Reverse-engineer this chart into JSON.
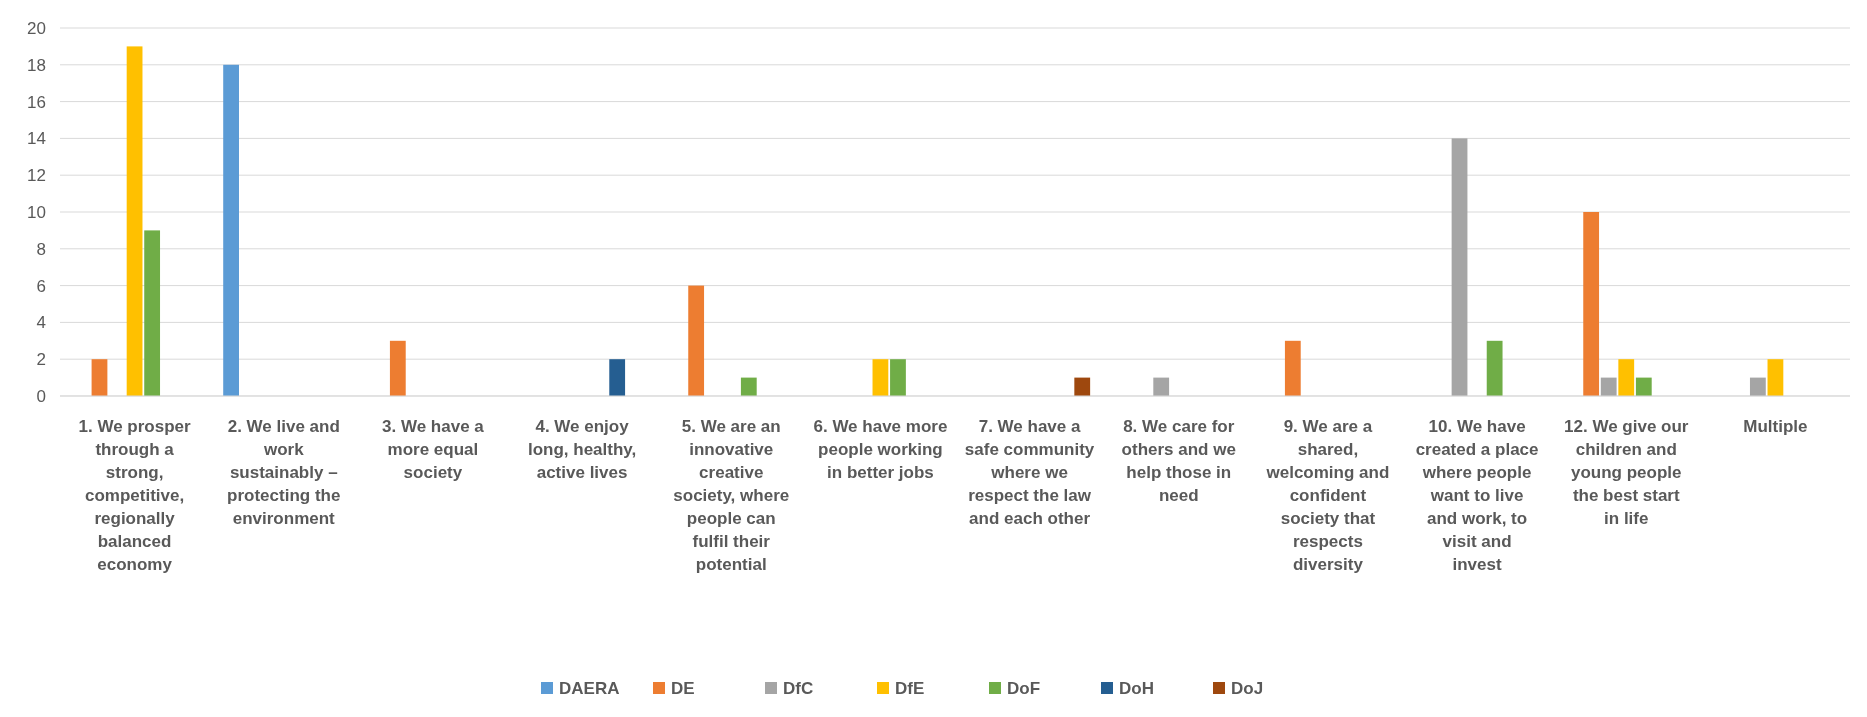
{
  "chart_data": {
    "type": "bar",
    "categories": [
      "1. We prosper through a strong, competitive, regionally balanced economy",
      "2. We live and work sustainably – protecting the environment",
      "3. We have a more equal society",
      "4. We enjoy long, healthy, active lives",
      "5. We are an innovative creative society, where people can fulfil their potential",
      "6. We have more people working in better jobs",
      "7. We have a safe community where we respect the law and each other",
      "8. We care for others and we help those in need",
      "9. We are a shared, welcoming and confident society that respects diversity",
      "10. We have created a place where people want to live and work, to visit and invest",
      "12. We give our children and young people the best start in life",
      "Multiple"
    ],
    "series": [
      {
        "name": "DAERA",
        "color": "#5b9bd5",
        "values": [
          0,
          18,
          0,
          0,
          0,
          0,
          0,
          0,
          0,
          0,
          0,
          0
        ]
      },
      {
        "name": "DE",
        "color": "#ed7d31",
        "values": [
          2,
          0,
          3,
          0,
          6,
          0,
          0,
          0,
          3,
          0,
          10,
          0
        ]
      },
      {
        "name": "DfC",
        "color": "#a5a5a5",
        "values": [
          0,
          0,
          0,
          0,
          0,
          0,
          0,
          1,
          0,
          14,
          1,
          1
        ]
      },
      {
        "name": "DfE",
        "color": "#ffc000",
        "values": [
          19,
          0,
          0,
          0,
          0,
          2,
          0,
          0,
          0,
          0,
          2,
          2
        ]
      },
      {
        "name": "DoF",
        "color": "#70ad47",
        "values": [
          9,
          0,
          0,
          0,
          1,
          2,
          0,
          0,
          0,
          3,
          1,
          0
        ]
      },
      {
        "name": "DoH",
        "color": "#255e91",
        "values": [
          0,
          0,
          0,
          2,
          0,
          0,
          0,
          0,
          0,
          0,
          0,
          0
        ]
      },
      {
        "name": "DoJ",
        "color": "#9e480e",
        "values": [
          0,
          0,
          0,
          0,
          0,
          0,
          1,
          0,
          0,
          0,
          0,
          0
        ]
      }
    ],
    "ylim": [
      0,
      20
    ],
    "yticks": [
      0,
      2,
      4,
      6,
      8,
      10,
      12,
      14,
      16,
      18,
      20
    ],
    "grid": "y",
    "legend": "bottom"
  }
}
